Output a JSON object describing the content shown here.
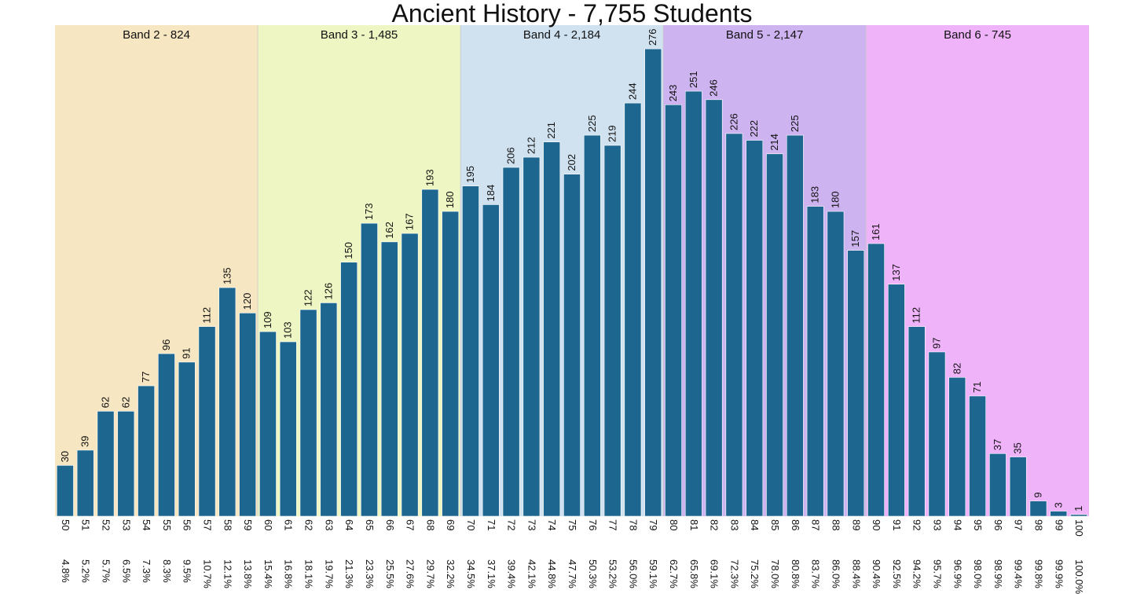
{
  "chart_data": {
    "type": "bar",
    "title": "Ancient History - 7,755 Students",
    "xlabel": "",
    "ylabel": "",
    "ylim": [
      0,
      290
    ],
    "grid": false,
    "bar_color": "#1c6690",
    "categories": [
      "50",
      "51",
      "52",
      "53",
      "54",
      "55",
      "56",
      "57",
      "58",
      "59",
      "60",
      "61",
      "62",
      "63",
      "64",
      "65",
      "66",
      "67",
      "68",
      "69",
      "70",
      "71",
      "72",
      "73",
      "74",
      "75",
      "76",
      "77",
      "78",
      "79",
      "80",
      "81",
      "82",
      "83",
      "84",
      "85",
      "86",
      "87",
      "88",
      "89",
      "90",
      "91",
      "92",
      "93",
      "94",
      "95",
      "96",
      "97",
      "98",
      "99",
      "100"
    ],
    "values": [
      30,
      39,
      62,
      62,
      77,
      96,
      91,
      112,
      135,
      120,
      109,
      103,
      122,
      126,
      150,
      173,
      162,
      167,
      193,
      180,
      195,
      184,
      206,
      212,
      221,
      202,
      225,
      219,
      244,
      276,
      243,
      251,
      246,
      226,
      222,
      214,
      225,
      183,
      180,
      157,
      161,
      137,
      112,
      97,
      82,
      71,
      37,
      35,
      9,
      3,
      1
    ],
    "percentiles": [
      "4.8%",
      "5.2%",
      "5.7%",
      "6.5%",
      "7.3%",
      "8.3%",
      "9.5%",
      "10.7%",
      "12.1%",
      "13.8%",
      "15.4%",
      "16.8%",
      "18.1%",
      "19.7%",
      "21.3%",
      "23.3%",
      "25.5%",
      "27.6%",
      "29.7%",
      "32.2%",
      "34.5%",
      "37.1%",
      "39.4%",
      "42.1%",
      "44.8%",
      "47.7%",
      "50.3%",
      "53.2%",
      "56.0%",
      "59.1%",
      "62.7%",
      "65.8%",
      "69.1%",
      "72.3%",
      "75.2%",
      "78.0%",
      "80.8%",
      "83.7%",
      "86.0%",
      "88.4%",
      "90.4%",
      "92.5%",
      "94.2%",
      "95.7%",
      "96.9%",
      "98.0%",
      "98.9%",
      "99.4%",
      "99.8%",
      "99.9%",
      "100.0%"
    ],
    "bands": [
      {
        "label": "Band 2 - 824",
        "from": "50",
        "to": "59",
        "color": "#f6e6c2"
      },
      {
        "label": "Band 3 - 1,485",
        "from": "60",
        "to": "69",
        "color": "#eef7c3"
      },
      {
        "label": "Band 4 - 2,184",
        "from": "70",
        "to": "79",
        "color": "#d0e2f0"
      },
      {
        "label": "Band 5 - 2,147",
        "from": "80",
        "to": "89",
        "color": "#cdb3ef"
      },
      {
        "label": "Band 6 - 745",
        "from": "90",
        "to": "100",
        "color": "#efb3fa"
      }
    ]
  }
}
